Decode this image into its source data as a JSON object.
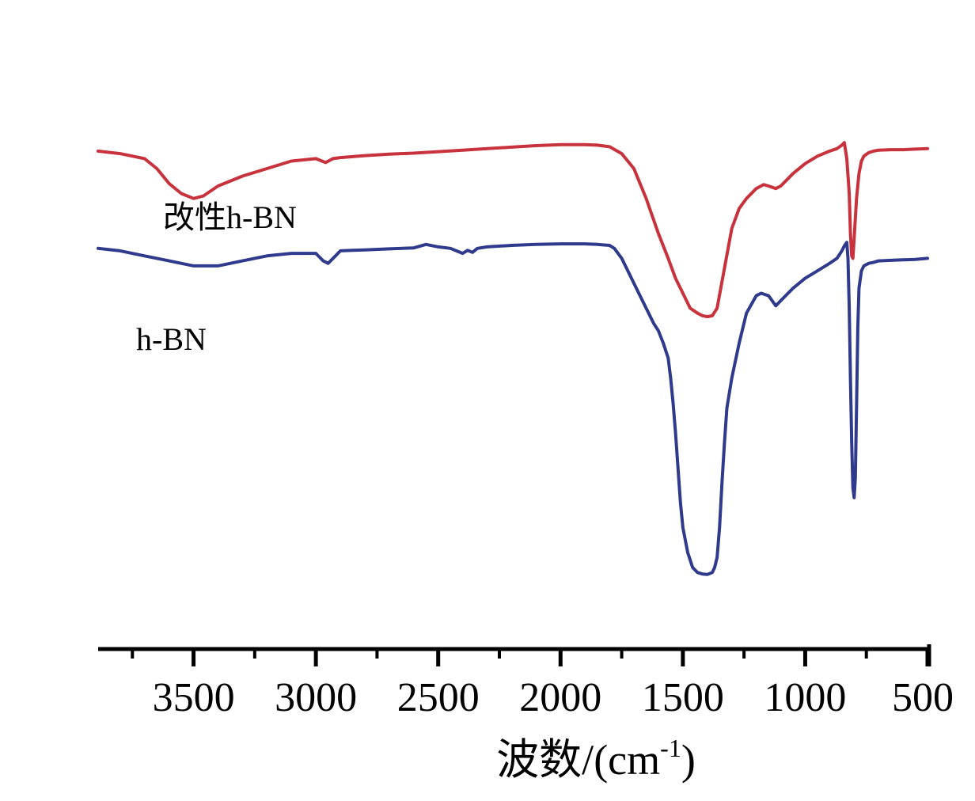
{
  "chart_data": {
    "type": "line",
    "xlabel": "波数/(cm",
    "xlabel_sup": "-1",
    "xlabel_tail": ")",
    "xlim": [
      3890,
      500
    ],
    "x_reversed": true,
    "xticks": [
      3500,
      3000,
      2500,
      2000,
      1500,
      1000,
      500
    ],
    "xtick_labels": [
      "3500",
      "3000",
      "2500",
      "2000",
      "1500",
      "1000",
      "500"
    ],
    "y_axis_shown": false,
    "ylim": [
      0,
      100
    ],
    "grid": false,
    "legend": "none",
    "series": [
      {
        "name": "改性h-BN",
        "color": "#c8323c",
        "x": [
          3890,
          3800,
          3700,
          3650,
          3600,
          3550,
          3500,
          3460,
          3400,
          3300,
          3200,
          3100,
          3000,
          2960,
          2930,
          2900,
          2800,
          2700,
          2600,
          2500,
          2400,
          2300,
          2200,
          2100,
          2000,
          1950,
          1900,
          1850,
          1800,
          1750,
          1700,
          1650,
          1600,
          1560,
          1530,
          1500,
          1470,
          1440,
          1420,
          1400,
          1380,
          1360,
          1330,
          1300,
          1270,
          1240,
          1200,
          1170,
          1150,
          1120,
          1100,
          1080,
          1050,
          1000,
          950,
          900,
          870,
          850,
          840,
          830,
          820,
          815,
          810,
          805,
          800,
          790,
          780,
          770,
          760,
          740,
          720,
          700,
          650,
          600,
          550,
          500
        ],
        "y": [
          93.5,
          93,
          92,
          90,
          87,
          85,
          84,
          84.5,
          86.5,
          88.5,
          90,
          91.5,
          92,
          91.2,
          92,
          92.2,
          92.6,
          92.9,
          93.1,
          93.4,
          93.7,
          94,
          94.3,
          94.6,
          94.8,
          94.8,
          94.8,
          94.7,
          94.4,
          93,
          90,
          84,
          77,
          72,
          68,
          65,
          62,
          61,
          60.5,
          60.3,
          60.5,
          62,
          70,
          78,
          82,
          84,
          86,
          86.8,
          86.5,
          86,
          86.5,
          87.5,
          89,
          91,
          92.5,
          93.5,
          94,
          94.7,
          95.2,
          92,
          85,
          77,
          72.5,
          72,
          76,
          84,
          89,
          91.5,
          92.5,
          93.2,
          93.5,
          93.7,
          93.8,
          93.8,
          93.9,
          94
        ]
      },
      {
        "name": "h-BN",
        "color": "#2f3a8c",
        "x": [
          3890,
          3800,
          3700,
          3600,
          3500,
          3400,
          3300,
          3200,
          3100,
          3000,
          2970,
          2950,
          2920,
          2900,
          2850,
          2800,
          2700,
          2600,
          2550,
          2500,
          2450,
          2400,
          2380,
          2360,
          2340,
          2300,
          2200,
          2100,
          2000,
          1900,
          1850,
          1800,
          1780,
          1750,
          1700,
          1650,
          1620,
          1600,
          1580,
          1560,
          1550,
          1540,
          1530,
          1520,
          1510,
          1500,
          1480,
          1460,
          1440,
          1420,
          1400,
          1380,
          1370,
          1360,
          1350,
          1340,
          1330,
          1320,
          1300,
          1270,
          1240,
          1200,
          1180,
          1150,
          1120,
          1100,
          1080,
          1050,
          1000,
          950,
          900,
          870,
          850,
          840,
          830,
          825,
          820,
          815,
          810,
          805,
          800,
          795,
          790,
          785,
          780,
          770,
          760,
          740,
          720,
          700,
          650,
          600,
          550,
          500
        ],
        "y": [
          74,
          73.5,
          72.5,
          71.5,
          70.5,
          70.5,
          71.5,
          72.5,
          73,
          73,
          71.5,
          71,
          72.5,
          73.5,
          73.6,
          73.7,
          73.9,
          74.1,
          74.8,
          74.3,
          74,
          73,
          73.6,
          73.2,
          74,
          74.3,
          74.6,
          74.8,
          74.9,
          74.9,
          74.8,
          74.6,
          74,
          72,
          67,
          62,
          59,
          57.5,
          55,
          52,
          48,
          43,
          37,
          30,
          23,
          18,
          13,
          10,
          9,
          8.7,
          8.6,
          9,
          10,
          12,
          18,
          27,
          35,
          42,
          48,
          55,
          61,
          64.5,
          65,
          64.5,
          62.5,
          63.5,
          64.5,
          66,
          68,
          69.5,
          71,
          72,
          73.5,
          74.5,
          75.2,
          72,
          62,
          48,
          35,
          26,
          24,
          28,
          42,
          58,
          66,
          69.5,
          70.5,
          71,
          71.2,
          71.5,
          71.6,
          71.7,
          71.8,
          72
        ]
      }
    ],
    "annotations": [
      {
        "text": "改性h-BN",
        "series": "改性h-BN"
      },
      {
        "text": "h-BN",
        "series": "h-BN"
      }
    ]
  }
}
